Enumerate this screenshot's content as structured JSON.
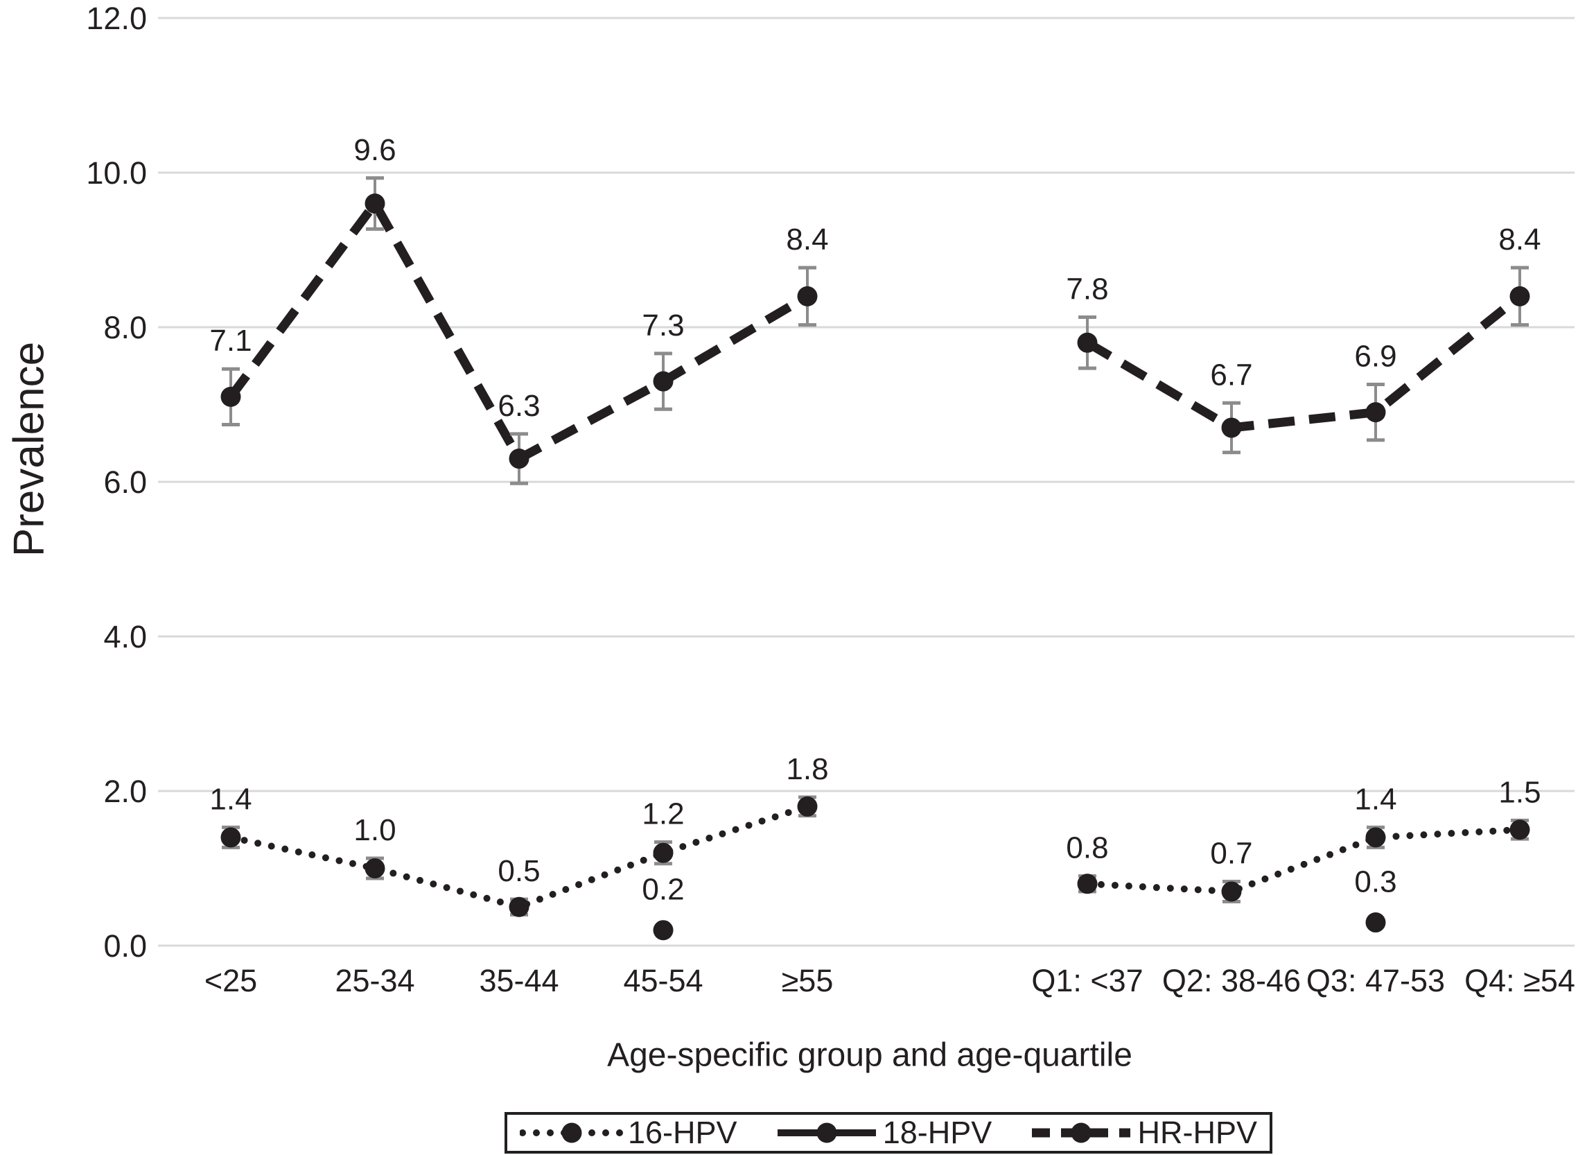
{
  "figure": {
    "background": "#ffffff",
    "text_color": "#231f20",
    "series_color": "#231f20",
    "grid_color": "#d9d9d9",
    "errorbar_color": "#8c8c8c"
  },
  "chart_data": {
    "type": "line",
    "title": "",
    "xlabel": "Age-specific group and age-quartile",
    "ylabel": "Prevalence",
    "ylim": [
      0,
      12
    ],
    "grid": "horizontal-only",
    "legend_position": "bottom-boxed",
    "yticks": [
      {
        "value": 0,
        "label": "0.0"
      },
      {
        "value": 2,
        "label": "2.0"
      },
      {
        "value": 4,
        "label": "4.0"
      },
      {
        "value": 6,
        "label": "6.0"
      },
      {
        "value": 8,
        "label": "8.0"
      },
      {
        "value": 10,
        "label": "10.0"
      },
      {
        "value": 12,
        "label": "12.0"
      }
    ],
    "groups": [
      {
        "name": "age-specific-group",
        "categories": [
          "<25",
          "25-34",
          "35-44",
          "45-54",
          "≥55"
        ]
      },
      {
        "name": "age-quartile",
        "categories": [
          "Q1: <37",
          "Q2: 38-46",
          "Q3: 47-53",
          "Q4: ≥54"
        ]
      }
    ],
    "series": [
      {
        "name": "16-HPV",
        "line_style": "dotted",
        "group_values": [
          [
            1.4,
            1.0,
            0.5,
            1.2,
            1.8
          ],
          [
            0.8,
            0.7,
            1.4,
            1.5
          ]
        ],
        "group_errors": [
          [
            0.13,
            0.13,
            0.1,
            0.14,
            0.12
          ],
          [
            0.1,
            0.13,
            0.13,
            0.12
          ]
        ],
        "group_labels": [
          [
            "1.4",
            "1.0",
            "0.5",
            "1.2",
            "1.8"
          ],
          [
            "0.8",
            "0.7",
            "1.4",
            "1.5"
          ]
        ]
      },
      {
        "name": "18-HPV",
        "line_style": "solid",
        "group_values": [
          [
            null,
            null,
            null,
            0.2,
            null
          ],
          [
            null,
            null,
            0.3,
            null
          ]
        ],
        "group_errors": [
          [
            0,
            0,
            0,
            0,
            0
          ],
          [
            0,
            0,
            0,
            0
          ]
        ],
        "group_labels": [
          [
            null,
            null,
            null,
            "0.2",
            null
          ],
          [
            null,
            null,
            "0.3",
            null
          ]
        ]
      },
      {
        "name": "HR-HPV",
        "line_style": "dashed",
        "group_values": [
          [
            7.1,
            9.6,
            6.3,
            7.3,
            8.4
          ],
          [
            7.8,
            6.7,
            6.9,
            8.4
          ]
        ],
        "group_errors": [
          [
            0.36,
            0.33,
            0.32,
            0.36,
            0.37
          ],
          [
            0.33,
            0.32,
            0.36,
            0.37
          ]
        ],
        "group_labels": [
          [
            "7.1",
            "9.6",
            "6.3",
            "7.3",
            "8.4"
          ],
          [
            "7.8",
            "6.7",
            "6.9",
            "8.4"
          ]
        ]
      }
    ]
  }
}
